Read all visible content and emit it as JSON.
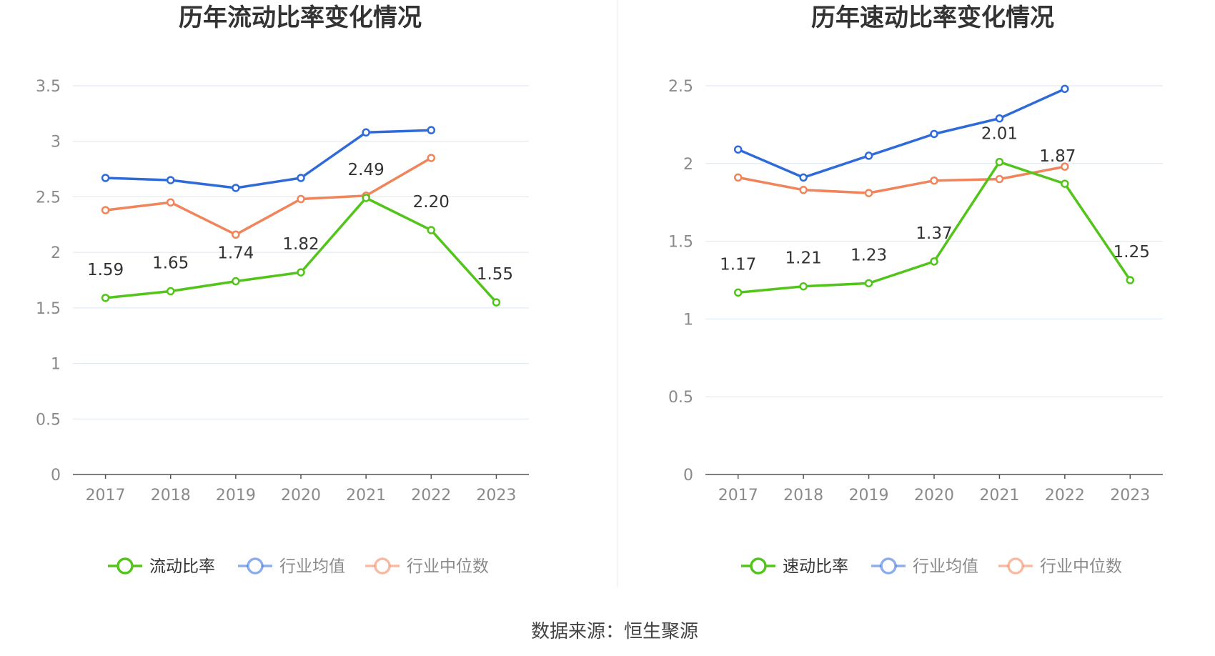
{
  "source": "数据来源：恒生聚源",
  "chart_data": [
    {
      "type": "line",
      "title": "历年流动比率变化情况",
      "categories": [
        "2017",
        "2018",
        "2019",
        "2020",
        "2021",
        "2022",
        "2023"
      ],
      "ylim": [
        0,
        3.5
      ],
      "yticks": [
        "0",
        "0.5",
        "1",
        "1.5",
        "2",
        "2.5",
        "3",
        "3.5"
      ],
      "grid": true,
      "legend_position": "bottom",
      "series": [
        {
          "name": "流动比率",
          "color": "#52c41a",
          "values": [
            1.59,
            1.65,
            1.74,
            1.82,
            2.49,
            2.2,
            1.55
          ],
          "labels": [
            "1.59",
            "1.65",
            "1.74",
            "1.82",
            "2.49",
            "2.20",
            "1.55"
          ]
        },
        {
          "name": "行业均值",
          "color": "#2f6bd8",
          "values": [
            2.67,
            2.65,
            2.58,
            2.67,
            3.08,
            3.1,
            null
          ]
        },
        {
          "name": "行业中位数",
          "color": "#f0845a",
          "values": [
            2.38,
            2.45,
            2.16,
            2.48,
            2.51,
            2.85,
            null
          ]
        }
      ]
    },
    {
      "type": "line",
      "title": "历年速动比率变化情况",
      "categories": [
        "2017",
        "2018",
        "2019",
        "2020",
        "2021",
        "2022",
        "2023"
      ],
      "ylim": [
        0,
        2.5
      ],
      "yticks": [
        "0",
        "0.5",
        "1",
        "1.5",
        "2",
        "2.5"
      ],
      "grid": true,
      "legend_position": "bottom",
      "series": [
        {
          "name": "速动比率",
          "color": "#52c41a",
          "values": [
            1.17,
            1.21,
            1.23,
            1.37,
            2.01,
            1.87,
            1.25
          ],
          "labels": [
            "1.17",
            "1.21",
            "1.23",
            "1.37",
            "2.01",
            "1.87",
            "1.25"
          ]
        },
        {
          "name": "行业均值",
          "color": "#2f6bd8",
          "values": [
            2.09,
            1.91,
            2.05,
            2.19,
            2.29,
            2.48,
            null
          ]
        },
        {
          "name": "行业中位数",
          "color": "#f0845a",
          "values": [
            1.91,
            1.83,
            1.81,
            1.89,
            1.9,
            1.98,
            null
          ]
        }
      ]
    }
  ]
}
